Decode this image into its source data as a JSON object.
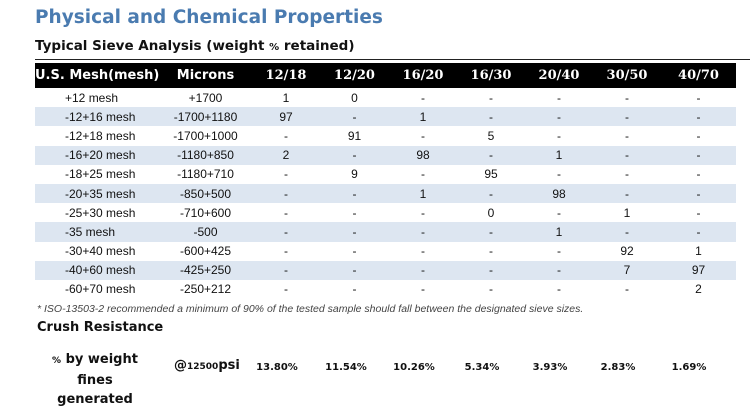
{
  "title": "Physical and Chemical Properties",
  "subtitle": {
    "main": "Typical Sieve Analysis (weight ",
    "percent": "%",
    "tail": " retained)"
  },
  "table": {
    "headers": [
      "U.S. Mesh(mesh)",
      "Microns",
      "12/18",
      "12/20",
      "16/20",
      "16/30",
      "20/40",
      "30/50",
      "40/70"
    ],
    "rows": [
      [
        "+12 mesh",
        "+1700",
        "1",
        "0",
        "-",
        "-",
        "-",
        "-",
        "-"
      ],
      [
        "-12+16 mesh",
        "-1700+1180",
        "97",
        "-",
        "1",
        "-",
        "-",
        "-",
        "-"
      ],
      [
        "-12+18 mesh",
        "-1700+1000",
        "-",
        "91",
        "-",
        "5",
        "-",
        "-",
        "-"
      ],
      [
        "-16+20 mesh",
        "-1180+850",
        "2",
        "-",
        "98",
        "-",
        "1",
        "-",
        "-"
      ],
      [
        "-18+25 mesh",
        "-1180+710",
        "-",
        "9",
        "-",
        "95",
        "-",
        "-",
        "-"
      ],
      [
        "-20+35 mesh",
        "-850+500",
        "-",
        "-",
        "1",
        "-",
        "98",
        "-",
        "-"
      ],
      [
        "-25+30 mesh",
        "-710+600",
        "-",
        "-",
        "-",
        "0",
        "-",
        "1",
        "-"
      ],
      [
        "-35 mesh",
        "-500",
        "-",
        "-",
        "-",
        "-",
        "1",
        "-",
        "-"
      ],
      [
        "-30+40 mesh",
        "-600+425",
        "-",
        "-",
        "-",
        "-",
        "-",
        "92",
        "1"
      ],
      [
        "-40+60 mesh",
        "-425+250",
        "-",
        "-",
        "-",
        "-",
        "-",
        "7",
        "97"
      ],
      [
        "-60+70 mesh",
        "-250+212",
        "-",
        "-",
        "-",
        "-",
        "-",
        "-",
        "2"
      ]
    ]
  },
  "footnote": "* ISO-13503-2 recommended a minimum of 90% of the tested sample should fall between the designated sieve sizes.",
  "crush": {
    "title": "Crush Resistance",
    "label_pct": "%",
    "label_line1": " by weight fines",
    "label_line2": "generated",
    "psi_at": "@",
    "psi_value": "12500",
    "psi_unit": "psi",
    "values": [
      "13.80%",
      "11.54%",
      "10.26%",
      "5.34%",
      "3.93%",
      "2.83%",
      "1.69%"
    ]
  },
  "colors": {
    "title_blue": "#4a7bb0",
    "header_bg": "#000000",
    "stripe": "#dde6f1"
  }
}
